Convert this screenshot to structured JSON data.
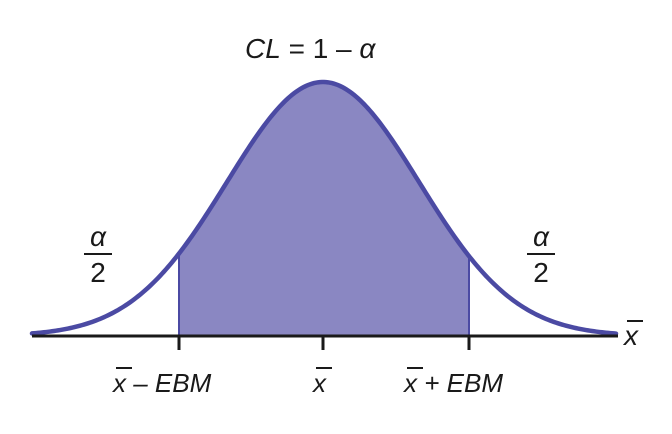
{
  "diagram": {
    "type": "normal-distribution-confidence-interval",
    "title": {
      "left": "CL",
      "eq": " = 1 – ",
      "alpha": "α"
    },
    "left_tail": {
      "numerator": "α",
      "denominator": "2"
    },
    "right_tail": {
      "numerator": "α",
      "denominator": "2"
    },
    "axis_variable": "x",
    "ticks": {
      "lower": {
        "var": "x",
        "rest": " – EBM"
      },
      "center": {
        "var": "x",
        "rest": ""
      },
      "upper": {
        "var": "x",
        "rest": " + EBM"
      }
    },
    "colors": {
      "shaded_region": "#8a87c2",
      "curve": "#4b4aa3",
      "axis": "#1a1a1a"
    }
  }
}
